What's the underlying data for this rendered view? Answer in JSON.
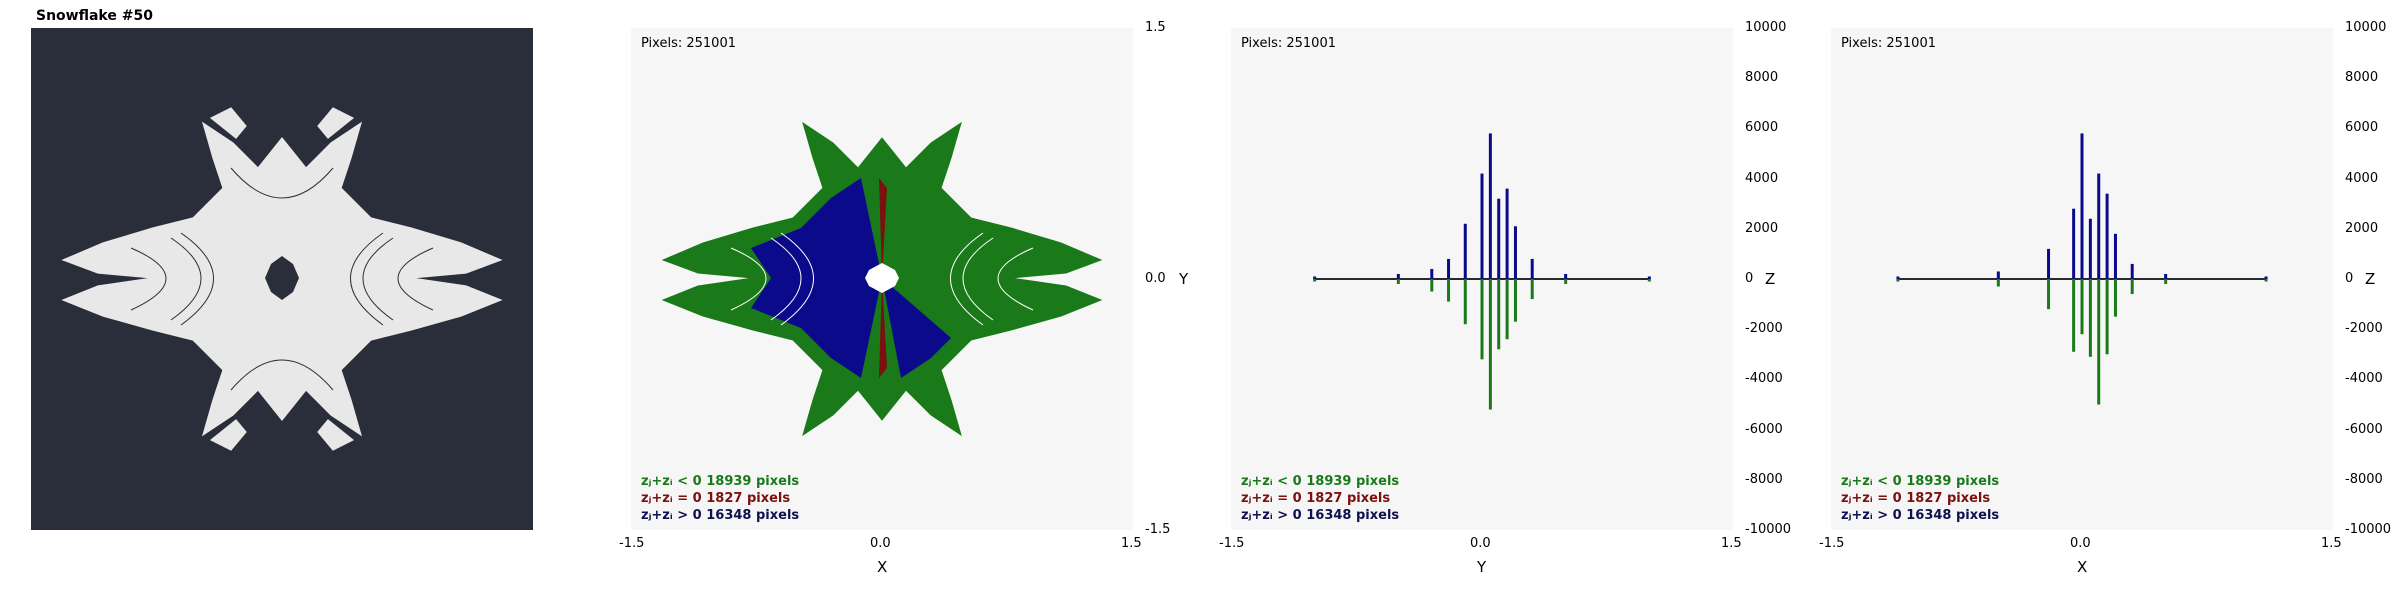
{
  "snowflake": {
    "title": "Snowflake #50",
    "colors": {
      "background": "#292e3a",
      "shape": "#e8e8e8"
    }
  },
  "colors": {
    "negative": "#1a7a1a",
    "zero": "#7a1010",
    "positive": "#0a0a8a",
    "plot_bg": "#f6f6f6"
  },
  "legend": {
    "neg": "zⱼ+zᵢ < 0  18939 pixels",
    "zero": "zⱼ+zᵢ = 0  1827 pixels",
    "pos": "zⱼ+zᵢ > 0  16348 pixels"
  },
  "chart_data": [
    {
      "type": "scatter",
      "pixels_label": "Pixels: 251001",
      "xlabel": "X",
      "ylabel": "Y",
      "xlim": [
        -1.5,
        1.5
      ],
      "ylim": [
        -1.5,
        1.5
      ],
      "x_ticks": [
        "-1.5",
        "0.0",
        "1.5"
      ],
      "y_ticks": [
        "1.5",
        "0.0",
        "-1.5"
      ],
      "legend_placement": "bottom-left"
    },
    {
      "type": "bar",
      "pixels_label": "Pixels: 251001",
      "xlabel": "Y",
      "ylabel": "Z",
      "xlim": [
        -1.5,
        1.5
      ],
      "ylim": [
        -10000,
        10000
      ],
      "x_ticks": [
        "-1.5",
        "0.0",
        "1.5"
      ],
      "y_ticks": [
        "10000",
        "8000",
        "6000",
        "4000",
        "2000",
        "0",
        "-2000",
        "-4000",
        "-6000",
        "-8000",
        "-10000"
      ],
      "legend_placement": "bottom-left",
      "series": [
        {
          "x": [
            -1.0,
            -0.5,
            -0.3,
            -0.2,
            -0.1,
            0.0,
            0.05,
            0.1,
            0.15,
            0.2,
            0.3,
            0.5,
            1.0
          ],
          "values": [
            100,
            200,
            400,
            800,
            2200,
            4200,
            5800,
            3200,
            3600,
            2100,
            800,
            200,
            100
          ]
        },
        {
          "x": [
            -1.0,
            -0.5,
            -0.3,
            -0.2,
            -0.1,
            0.0,
            0.05,
            0.1,
            0.15,
            0.2,
            0.3,
            0.5,
            1.0
          ],
          "values": [
            -100,
            -200,
            -500,
            -900,
            -1800,
            -3200,
            -5200,
            -2800,
            -2400,
            -1700,
            -800,
            -200,
            -100
          ]
        }
      ]
    },
    {
      "type": "bar",
      "pixels_label": "Pixels: 251001",
      "xlabel": "X",
      "ylabel": "Z",
      "xlim": [
        -1.5,
        1.5
      ],
      "ylim": [
        -10000,
        10000
      ],
      "x_ticks": [
        "-1.5",
        "0.0",
        "1.5"
      ],
      "y_ticks": [
        "10000",
        "8000",
        "6000",
        "4000",
        "2000",
        "0",
        "-2000",
        "-4000",
        "-6000",
        "-8000",
        "-10000"
      ],
      "legend_placement": "bottom-left",
      "series": [
        {
          "x": [
            -1.1,
            -0.5,
            -0.2,
            -0.05,
            0.0,
            0.05,
            0.1,
            0.15,
            0.2,
            0.3,
            0.5,
            1.1
          ],
          "values": [
            100,
            300,
            1200,
            2800,
            5800,
            2400,
            4200,
            3400,
            1800,
            600,
            200,
            100
          ]
        },
        {
          "x": [
            -1.1,
            -0.5,
            -0.2,
            -0.05,
            0.0,
            0.05,
            0.1,
            0.15,
            0.2,
            0.3,
            0.5,
            1.1
          ],
          "values": [
            -100,
            -300,
            -1200,
            -2900,
            -2200,
            -3100,
            -5000,
            -3000,
            -1500,
            -600,
            -200,
            -100
          ]
        }
      ]
    }
  ]
}
